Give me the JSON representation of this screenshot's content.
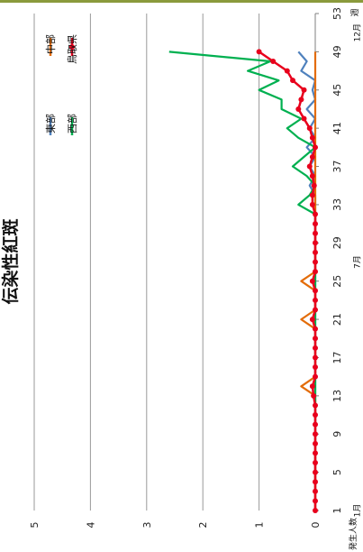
{
  "chart_data": {
    "type": "line",
    "orientation": "rotated 90° clockwise (x axis runs top-to-bottom, y axis runs left-to-right)",
    "title": "伝染性紅斑",
    "ylabel": "発生人数",
    "xlabel": "週",
    "ylim": [
      0,
      5
    ],
    "yticks": [
      0,
      1,
      2,
      3,
      4,
      5
    ],
    "xlim": [
      1,
      53
    ],
    "xticks": [
      1,
      5,
      9,
      13,
      17,
      21,
      25,
      29,
      33,
      37,
      41,
      45,
      49,
      53
    ],
    "month_labels": [
      {
        "week": 1,
        "text": "1月"
      },
      {
        "week": 27,
        "text": "7月"
      },
      {
        "week": 51,
        "text": "12月"
      }
    ],
    "grid": true,
    "legend_position": "top-right",
    "series": [
      {
        "name": "東部",
        "color": "#4f81bd",
        "x": [
          1,
          2,
          3,
          4,
          5,
          6,
          7,
          8,
          9,
          10,
          11,
          12,
          13,
          14,
          15,
          16,
          17,
          18,
          19,
          20,
          21,
          22,
          23,
          24,
          25,
          26,
          27,
          28,
          29,
          30,
          31,
          32,
          33,
          34,
          35,
          36,
          37,
          38,
          39,
          40,
          41,
          42,
          43,
          44,
          45,
          46,
          47,
          48,
          49
        ],
        "y": [
          0,
          0,
          0,
          0,
          0,
          0,
          0,
          0,
          0,
          0,
          0,
          0,
          0,
          0,
          0,
          0,
          0,
          0,
          0,
          0,
          0,
          0,
          0,
          0,
          0,
          0,
          0,
          0,
          0,
          0,
          0,
          0,
          0,
          0,
          0.1,
          0,
          0.1,
          0,
          0.15,
          0,
          0.1,
          0,
          0.15,
          0,
          0.05,
          0,
          0.25,
          0.15,
          0.3
        ]
      },
      {
        "name": "中部",
        "color": "#e36c09",
        "x": [
          1,
          2,
          3,
          4,
          5,
          6,
          7,
          8,
          9,
          10,
          11,
          12,
          13,
          14,
          15,
          16,
          17,
          18,
          19,
          20,
          21,
          22,
          23,
          24,
          25,
          26,
          27,
          28,
          29,
          30,
          31,
          32,
          33,
          34,
          35,
          36,
          37,
          38,
          39,
          40,
          41,
          42,
          43,
          44,
          45,
          46,
          47,
          48,
          49
        ],
        "y": [
          0,
          0,
          0,
          0,
          0,
          0,
          0,
          0,
          0,
          0,
          0,
          0,
          0,
          0.25,
          0,
          0,
          0,
          0,
          0,
          0,
          0.25,
          0,
          0,
          0,
          0.25,
          0,
          0,
          0,
          0,
          0,
          0,
          0,
          0,
          0,
          0,
          0,
          0,
          0,
          0,
          0,
          0,
          0,
          0,
          0,
          0,
          0,
          0,
          0,
          0
        ]
      },
      {
        "name": "西部",
        "color": "#00b050",
        "x": [
          1,
          2,
          3,
          4,
          5,
          6,
          7,
          8,
          9,
          10,
          11,
          12,
          13,
          14,
          15,
          16,
          17,
          18,
          19,
          20,
          21,
          22,
          23,
          24,
          25,
          26,
          27,
          28,
          29,
          30,
          31,
          32,
          33,
          34,
          35,
          36,
          37,
          38,
          39,
          40,
          41,
          42,
          43,
          44,
          45,
          46,
          47,
          48,
          49
        ],
        "y": [
          0,
          0,
          0,
          0,
          0,
          0,
          0,
          0,
          0,
          0,
          0,
          0,
          0,
          0,
          0,
          0,
          0,
          0,
          0,
          0,
          0,
          0,
          0,
          0,
          0,
          0,
          0,
          0,
          0,
          0,
          0,
          0,
          0.3,
          0.1,
          0,
          0.15,
          0.4,
          0.2,
          0,
          0.3,
          0.5,
          0.25,
          0.6,
          0.6,
          1.0,
          0.65,
          1.2,
          0.8,
          2.6
        ]
      },
      {
        "name": "鳥取県",
        "color": "#e8001c",
        "x": [
          1,
          2,
          3,
          4,
          5,
          6,
          7,
          8,
          9,
          10,
          11,
          12,
          13,
          14,
          15,
          16,
          17,
          18,
          19,
          20,
          21,
          22,
          23,
          24,
          25,
          26,
          27,
          28,
          29,
          30,
          31,
          32,
          33,
          34,
          35,
          36,
          37,
          38,
          39,
          40,
          41,
          42,
          43,
          44,
          45,
          46,
          47,
          48,
          49
        ],
        "y": [
          0,
          0,
          0,
          0,
          0,
          0,
          0,
          0,
          0,
          0,
          0,
          0,
          0.03,
          0.05,
          0,
          0,
          0,
          0,
          0,
          0,
          0.05,
          0,
          0,
          0,
          0.05,
          0,
          0,
          0,
          0,
          0,
          0,
          0,
          0.05,
          0.05,
          0.02,
          0.05,
          0.1,
          0.05,
          0,
          0.05,
          0.1,
          0.2,
          0.3,
          0.25,
          0.2,
          0.4,
          0.5,
          0.75,
          1.0
        ]
      }
    ]
  }
}
